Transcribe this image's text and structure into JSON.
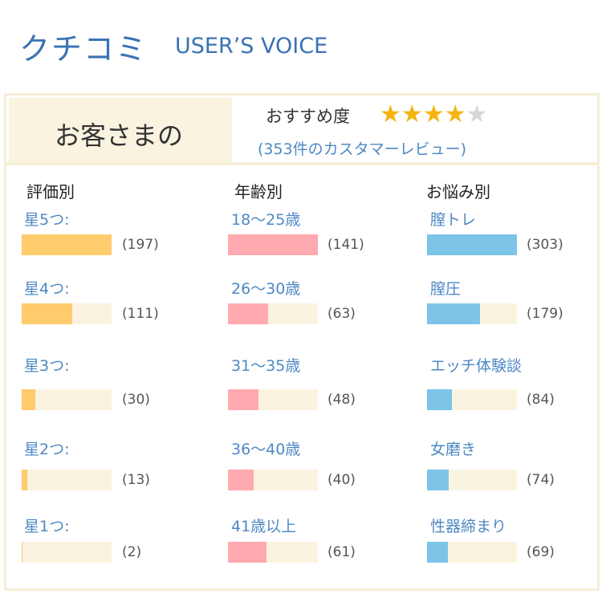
{
  "header": {
    "title": "クチコミ",
    "subtitle": "USER’S VOICE"
  },
  "summary": {
    "customers_label": "お客さまの",
    "recommend_label": "おすすめ度",
    "rating": 4,
    "rating_max": 5,
    "review_count_text": "(353件のカスタマーレビュー)"
  },
  "colors": {
    "rating": "#fecb6d",
    "age": "#ffaab0",
    "concern": "#7cc4e8",
    "track": "#f9f3e0"
  },
  "columns": {
    "rating": {
      "heading": "評価別",
      "items": [
        {
          "label": "星5つ:",
          "count": 197,
          "count_text": "(197)"
        },
        {
          "label": "星4つ:",
          "count": 111,
          "count_text": "(111)"
        },
        {
          "label": "星3つ:",
          "count": 30,
          "count_text": "(30)"
        },
        {
          "label": "星2つ:",
          "count": 13,
          "count_text": "(13)"
        },
        {
          "label": "星1つ:",
          "count": 2,
          "count_text": "(2)"
        }
      ]
    },
    "age": {
      "heading": "年齢別",
      "items": [
        {
          "label": "18〜25歳",
          "count": 141,
          "count_text": "(141)"
        },
        {
          "label": "26〜30歳",
          "count": 63,
          "count_text": "(63)"
        },
        {
          "label": "31〜35歳",
          "count": 48,
          "count_text": "(48)"
        },
        {
          "label": "36〜40歳",
          "count": 40,
          "count_text": "(40)"
        },
        {
          "label": "41歳以上",
          "count": 61,
          "count_text": "(61)"
        }
      ]
    },
    "concern": {
      "heading": "お悩み別",
      "items": [
        {
          "label": "膣トレ",
          "count": 303,
          "count_text": "(303)"
        },
        {
          "label": "膣圧",
          "count": 179,
          "count_text": "(179)"
        },
        {
          "label": "エッチ体験談",
          "count": 84,
          "count_text": "(84)"
        },
        {
          "label": "女磨き",
          "count": 74,
          "count_text": "(74)"
        },
        {
          "label": "性器締まり",
          "count": 69,
          "count_text": "(69)"
        }
      ]
    }
  }
}
